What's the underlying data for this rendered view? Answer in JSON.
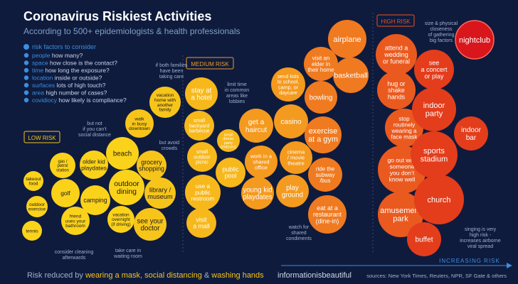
{
  "colors": {
    "bg": "#0f1b3d",
    "low": "#f5c518",
    "medium": "#f39a1e",
    "high": "#e8531e",
    "highest": "#d8161c",
    "subtitle": "#7ea0c8",
    "muted": "#9fb0cc",
    "accent": "#3a8fe0",
    "label_box_low": "#f5c518",
    "label_box_med": "#f39a1e",
    "label_box_high": "#e8531e"
  },
  "header": {
    "title": "Coronavirus Riskiest Activities",
    "subtitle": "According to 500+ epidemiologists & health professionals"
  },
  "factors": {
    "heading": "risk factors to consider",
    "items": [
      {
        "icon": "people-icon",
        "key": "people",
        "desc": "how many?"
      },
      {
        "icon": "space-icon",
        "key": "space",
        "desc": "how close is the contact?"
      },
      {
        "icon": "time-icon",
        "key": "time",
        "desc": "how long the exposure?"
      },
      {
        "icon": "location-icon",
        "key": "location",
        "desc": "inside or outside?"
      },
      {
        "icon": "surfaces-icon",
        "key": "surfaces",
        "desc": "lots of high touch?"
      },
      {
        "icon": "area-icon",
        "key": "area",
        "desc": "high number of cases?"
      },
      {
        "icon": "covidiocy-icon",
        "key": "covidiocy",
        "desc": "how likely is compliance?"
      }
    ]
  },
  "chart_data": {
    "type": "bubble",
    "axis": "INCREASING RISK",
    "categories": [
      "LOW RISK",
      "MEDIUM RISK",
      "HIGH RISK"
    ],
    "bubbles": [
      {
        "label": "takeout food",
        "risk": "low"
      },
      {
        "label": "outdoor exercise",
        "risk": "low"
      },
      {
        "label": "tennis",
        "risk": "low"
      },
      {
        "label": "gas / petrol station",
        "risk": "low"
      },
      {
        "label": "golf",
        "risk": "low"
      },
      {
        "label": "friend uses your bathroom",
        "risk": "low"
      },
      {
        "label": "older kid playdates",
        "risk": "low"
      },
      {
        "label": "camping",
        "risk": "low"
      },
      {
        "label": "walk in busy downtown",
        "risk": "low"
      },
      {
        "label": "beach",
        "risk": "low"
      },
      {
        "label": "outdoor dining",
        "risk": "low"
      },
      {
        "label": "vacation overnight (if driving)",
        "risk": "low"
      },
      {
        "label": "vacation home with another family",
        "risk": "low"
      },
      {
        "label": "grocery shopping",
        "risk": "low"
      },
      {
        "label": "library / museum",
        "risk": "low"
      },
      {
        "label": "see your doctor",
        "risk": "low"
      },
      {
        "label": "stay at a hotel",
        "risk": "medium"
      },
      {
        "label": "small backyard barbecue",
        "risk": "medium"
      },
      {
        "label": "small outdoor picnic",
        "risk": "medium"
      },
      {
        "label": "use a public restroom",
        "risk": "medium"
      },
      {
        "label": "visit a mall",
        "risk": "medium"
      },
      {
        "label": "small dinner party (indoors)",
        "risk": "medium"
      },
      {
        "label": "public pool",
        "risk": "medium"
      },
      {
        "label": "get a haircut",
        "risk": "medium"
      },
      {
        "label": "work in a shared office",
        "risk": "medium"
      },
      {
        "label": "young kid playdates",
        "risk": "medium"
      },
      {
        "label": "send kids to school, camp, or daycare",
        "risk": "medium"
      },
      {
        "label": "casino",
        "risk": "medium"
      },
      {
        "label": "cinema / movie theatre",
        "risk": "medium"
      },
      {
        "label": "play ground",
        "risk": "medium"
      },
      {
        "label": "visit an elder in their home",
        "risk": "medium"
      },
      {
        "label": "bowling",
        "risk": "medium"
      },
      {
        "label": "exercise at a gym",
        "risk": "medium"
      },
      {
        "label": "ride the subway / bus",
        "risk": "medium"
      },
      {
        "label": "eat at a restaurant (dine-in)",
        "risk": "medium"
      },
      {
        "label": "airplane",
        "risk": "medium"
      },
      {
        "label": "basketball",
        "risk": "medium"
      },
      {
        "label": "attend a wedding or funeral",
        "risk": "high"
      },
      {
        "label": "hug or shake hands",
        "risk": "high"
      },
      {
        "label": "stop routinely wearing a face mask",
        "risk": "high"
      },
      {
        "label": "go out with someone you don't know well",
        "risk": "high"
      },
      {
        "label": "amusement park",
        "risk": "high"
      },
      {
        "label": "buffet",
        "risk": "high"
      },
      {
        "label": "see a concert or play",
        "risk": "high"
      },
      {
        "label": "indoor party",
        "risk": "high"
      },
      {
        "label": "sports stadium",
        "risk": "high"
      },
      {
        "label": "church",
        "risk": "high"
      },
      {
        "label": "indoor bar",
        "risk": "high"
      },
      {
        "label": "nightclub",
        "risk": "highest"
      }
    ],
    "annotations": [
      "but not if you can't social distance",
      "if both families have been taking care",
      "but avoid crowds",
      "consider cleaning afterwards",
      "take care in waiting room",
      "limit time in common areas like lobbies",
      "watch for shared condiments",
      "size & physical closeness of gathering big factors",
      "singing is very high risk - increases airborne viral spread"
    ]
  },
  "footer": {
    "prefix": "Risk reduced by ",
    "mask": "wearing a mask",
    "sep1": ", ",
    "distancing": "social distancing",
    "sep2": " & ",
    "hands": "washing hands",
    "brand": "informationisbeautiful",
    "sources": "sources: New York Times, Reuters, NPR, SF Gate & others"
  }
}
